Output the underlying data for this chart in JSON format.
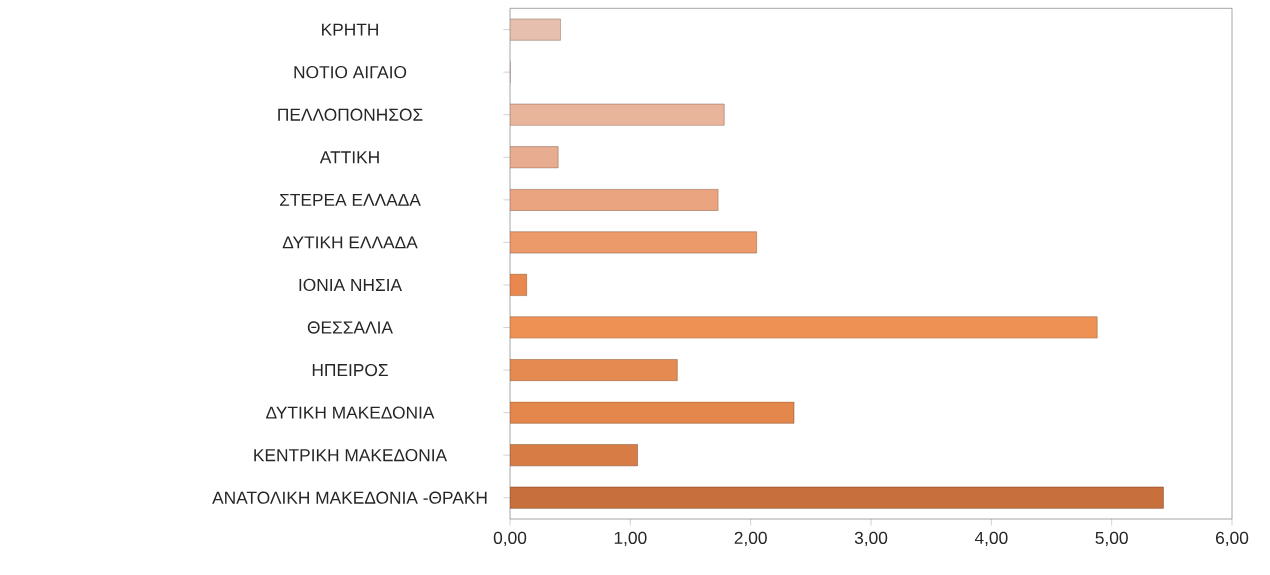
{
  "chart_data": {
    "type": "bar",
    "orientation": "horizontal",
    "categories": [
      "ΚΡΗΤΗ",
      "ΝΟΤΙΟ ΑΙΓΑΙΟ",
      "ΠΕΛΛΟΠΟΝΗΣΟΣ",
      "ΑΤΤΙΚΗ",
      "ΣΤΕΡΕΑ ΕΛΛΑΔΑ",
      "ΔΥΤΙΚΗ ΕΛΛΑΔΑ",
      "ΙΟΝΙΑ ΝΗΣΙΑ",
      "ΘΕΣΣΑΛΙΑ",
      "ΗΠΕΙΡΟΣ",
      "ΔΥΤΙΚΗ ΜΑΚΕΔΟΝΙΑ",
      "ΚΕΝΤΡΙΚΗ ΜΑΚΕΔΟΝΙΑ",
      "ΑΝΑΤΟΛΙΚΗ ΜΑΚΕΔΟΝΙΑ -ΘΡΑΚΗ"
    ],
    "values": [
      0.42,
      0,
      1.78,
      0.4,
      1.73,
      2.05,
      0.14,
      4.88,
      1.39,
      2.36,
      1.06,
      5.43
    ],
    "colors": [
      "#e6bfae",
      "#e8b8a4",
      "#e8b49a",
      "#e8ad90",
      "#eaa47f",
      "#ed9a6a",
      "#e8884e",
      "#ee9155",
      "#e58a50",
      "#e3874c",
      "#d67c44",
      "#c8703c"
    ],
    "xlim": [
      0,
      6
    ],
    "xticks": [
      {
        "value": 0,
        "label": "0,00"
      },
      {
        "value": 1,
        "label": "1,00"
      },
      {
        "value": 2,
        "label": "2,00"
      },
      {
        "value": 3,
        "label": "3,00"
      },
      {
        "value": 4,
        "label": "4,00"
      },
      {
        "value": 5,
        "label": "5,00"
      },
      {
        "value": 6,
        "label": "6,00"
      }
    ]
  }
}
